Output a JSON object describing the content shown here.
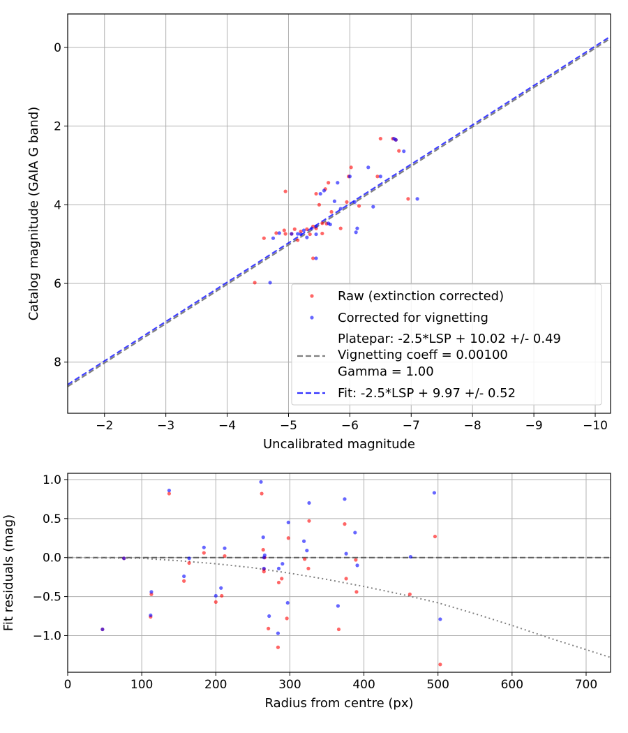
{
  "chart_data": [
    {
      "type": "scatter",
      "xlabel": "Uncalibrated magnitude",
      "ylabel": "Catalog magnitude (GAIA G band)",
      "xlim": [
        -1.4,
        -10.25
      ],
      "ylim": [
        9.3,
        -0.85
      ],
      "x_ticks": [
        -2,
        -3,
        -4,
        -5,
        -6,
        -7,
        -8,
        -9,
        -10
      ],
      "y_ticks": [
        0,
        2,
        4,
        6,
        8
      ],
      "x_tick_labels": [
        "−2",
        "−3",
        "−4",
        "−5",
        "−6",
        "−7",
        "−8",
        "−9",
        "−10"
      ],
      "y_tick_labels": [
        "0",
        "2",
        "4",
        "6",
        "8"
      ],
      "grid": true,
      "legend_placement": "lower-right",
      "colors": {
        "raw": "#ff0000",
        "corrected": "#0000ff",
        "platepar": "#808080",
        "fit": "#0000ff"
      },
      "series": [
        {
          "name": "Raw (extinction corrected)",
          "kind": "points",
          "color": "#ff0000",
          "points": [
            [
              -4.45,
              5.98
            ],
            [
              -4.6,
              4.85
            ],
            [
              -4.8,
              4.72
            ],
            [
              -4.93,
              4.65
            ],
            [
              -4.95,
              4.74
            ],
            [
              -4.95,
              3.66
            ],
            [
              -5.05,
              4.74
            ],
            [
              -5.1,
              4.62
            ],
            [
              -5.15,
              4.9
            ],
            [
              -5.2,
              4.68
            ],
            [
              -5.3,
              4.62
            ],
            [
              -5.35,
              4.75
            ],
            [
              -5.4,
              4.55
            ],
            [
              -5.4,
              5.36
            ],
            [
              -5.45,
              4.6
            ],
            [
              -5.45,
              3.72
            ],
            [
              -5.5,
              4.0
            ],
            [
              -5.55,
              4.73
            ],
            [
              -5.55,
              4.47
            ],
            [
              -5.6,
              3.6
            ],
            [
              -5.62,
              4.48
            ],
            [
              -5.65,
              3.44
            ],
            [
              -5.7,
              4.18
            ],
            [
              -5.85,
              4.6
            ],
            [
              -5.95,
              3.93
            ],
            [
              -5.98,
              3.28
            ],
            [
              -6.02,
              3.05
            ],
            [
              -6.15,
              4.03
            ],
            [
              -6.45,
              3.28
            ],
            [
              -6.5,
              2.32
            ],
            [
              -6.7,
              2.32
            ],
            [
              -6.75,
              2.35
            ],
            [
              -6.8,
              2.63
            ],
            [
              -6.95,
              3.85
            ]
          ]
        },
        {
          "name": "Corrected for vignetting",
          "kind": "points",
          "color": "#0000ff",
          "points": [
            [
              -4.7,
              5.98
            ],
            [
              -4.75,
              4.85
            ],
            [
              -4.85,
              4.72
            ],
            [
              -5.05,
              4.74
            ],
            [
              -5.15,
              4.74
            ],
            [
              -5.2,
              4.75
            ],
            [
              -5.25,
              4.65
            ],
            [
              -5.3,
              4.83
            ],
            [
              -5.38,
              4.6
            ],
            [
              -5.45,
              4.55
            ],
            [
              -5.45,
              4.75
            ],
            [
              -5.45,
              5.36
            ],
            [
              -5.52,
              3.72
            ],
            [
              -5.58,
              3.64
            ],
            [
              -5.65,
              4.47
            ],
            [
              -5.68,
              4.5
            ],
            [
              -5.75,
              3.91
            ],
            [
              -5.8,
              3.44
            ],
            [
              -5.85,
              4.1
            ],
            [
              -6.0,
              3.28
            ],
            [
              -6.08,
              3.93
            ],
            [
              -6.1,
              4.7
            ],
            [
              -6.12,
              4.6
            ],
            [
              -6.3,
              3.05
            ],
            [
              -6.38,
              4.05
            ],
            [
              -6.5,
              3.28
            ],
            [
              -6.72,
              2.32
            ],
            [
              -6.75,
              2.35
            ],
            [
              -6.88,
              2.64
            ],
            [
              -7.1,
              3.85
            ]
          ]
        },
        {
          "name": "Platepar: -2.5*LSP + 10.02 +/- 0.49\nVignetting coeff = 0.00100\nGamma = 1.00",
          "kind": "line",
          "style": "dashed",
          "color": "#808080",
          "points": [
            [
              -1.4,
              8.62
            ],
            [
              -10.25,
              -0.23
            ]
          ]
        },
        {
          "name": "Fit: -2.5*LSP + 9.97 +/- 0.52",
          "kind": "line",
          "style": "dashed",
          "color": "#0000ff",
          "points": [
            [
              -1.4,
              8.57
            ],
            [
              -10.25,
              -0.28
            ]
          ]
        }
      ],
      "legend": [
        {
          "marker": "dot",
          "color": "#ff0000",
          "lines": [
            "Raw (extinction corrected)"
          ]
        },
        {
          "marker": "dot",
          "color": "#0000ff",
          "lines": [
            "Corrected for vignetting"
          ]
        },
        {
          "marker": "dash",
          "color": "#808080",
          "lines": [
            "Platepar: -2.5*LSP + 10.02 +/- 0.49",
            "Vignetting coeff = 0.00100",
            "Gamma = 1.00"
          ]
        },
        {
          "marker": "dash",
          "color": "#0000ff",
          "lines": [
            "Fit: -2.5*LSP + 9.97 +/- 0.52"
          ]
        }
      ]
    },
    {
      "type": "scatter",
      "xlabel": "Radius from centre (px)",
      "ylabel": "Fit residuals (mag)",
      "xlim": [
        0,
        733
      ],
      "ylim": [
        -1.47,
        1.08
      ],
      "x_ticks": [
        0,
        100,
        200,
        300,
        400,
        500,
        600,
        700
      ],
      "y_ticks": [
        1.0,
        0.5,
        0.0,
        -0.5,
        -1.0
      ],
      "x_tick_labels": [
        "0",
        "100",
        "200",
        "300",
        "400",
        "500",
        "600",
        "700"
      ],
      "y_tick_labels": [
        "1.0",
        "0.5",
        "0.0",
        "−0.5",
        "−1.0"
      ],
      "grid": true,
      "colors": {
        "raw": "#ff0000",
        "corrected": "#0000ff",
        "zero_line": "#555555",
        "vignetting_curve": "#808080"
      },
      "series": [
        {
          "kind": "points",
          "color": "#ff0000",
          "points": [
            [
              47,
              -0.92
            ],
            [
              76,
              -0.01
            ],
            [
              112,
              -0.76
            ],
            [
              113,
              -0.47
            ],
            [
              137,
              0.82
            ],
            [
              157,
              -0.3
            ],
            [
              164,
              -0.07
            ],
            [
              184,
              0.06
            ],
            [
              200,
              -0.57
            ],
            [
              208,
              -0.49
            ],
            [
              212,
              0.02
            ],
            [
              262,
              0.82
            ],
            [
              264,
              0.1
            ],
            [
              265,
              -0.15
            ],
            [
              265,
              -0.18
            ],
            [
              266,
              0.0
            ],
            [
              271,
              -0.91
            ],
            [
              284,
              -1.15
            ],
            [
              285,
              -0.32
            ],
            [
              289,
              -0.27
            ],
            [
              296,
              -0.78
            ],
            [
              298,
              0.25
            ],
            [
              320,
              -0.02
            ],
            [
              325,
              -0.14
            ],
            [
              326,
              0.47
            ],
            [
              366,
              -0.92
            ],
            [
              374,
              0.43
            ],
            [
              376,
              -0.27
            ],
            [
              389,
              -0.03
            ],
            [
              390,
              -0.44
            ],
            [
              462,
              -0.47
            ],
            [
              496,
              0.27
            ],
            [
              503,
              -1.37
            ]
          ]
        },
        {
          "kind": "points",
          "color": "#0000ff",
          "points": [
            [
              47,
              -0.92
            ],
            [
              76,
              -0.01
            ],
            [
              112,
              -0.74
            ],
            [
              113,
              -0.44
            ],
            [
              137,
              0.86
            ],
            [
              157,
              -0.24
            ],
            [
              164,
              -0.01
            ],
            [
              184,
              0.13
            ],
            [
              200,
              -0.49
            ],
            [
              207,
              -0.39
            ],
            [
              212,
              0.12
            ],
            [
              261,
              0.97
            ],
            [
              264,
              0.26
            ],
            [
              265,
              -0.14
            ],
            [
              265,
              0.0
            ],
            [
              266,
              0.03
            ],
            [
              272,
              -0.75
            ],
            [
              284,
              -0.97
            ],
            [
              285,
              -0.14
            ],
            [
              290,
              -0.08
            ],
            [
              297,
              -0.58
            ],
            [
              298,
              0.45
            ],
            [
              319,
              0.21
            ],
            [
              323,
              0.09
            ],
            [
              326,
              0.7
            ],
            [
              365,
              -0.62
            ],
            [
              374,
              0.75
            ],
            [
              376,
              0.05
            ],
            [
              388,
              0.32
            ],
            [
              391,
              -0.1
            ],
            [
              463,
              0.01
            ],
            [
              495,
              0.83
            ],
            [
              503,
              -0.79
            ]
          ]
        },
        {
          "kind": "hline",
          "style": "dashed",
          "color": "#555555",
          "value": 0.0
        },
        {
          "kind": "curve",
          "style": "dotted",
          "color": "#808080",
          "points": [
            [
              0,
              0.0
            ],
            [
              100,
              -0.01
            ],
            [
              150,
              -0.04
            ],
            [
              200,
              -0.08
            ],
            [
              250,
              -0.13
            ],
            [
              300,
              -0.2
            ],
            [
              350,
              -0.28
            ],
            [
              400,
              -0.37
            ],
            [
              450,
              -0.47
            ],
            [
              500,
              -0.58
            ],
            [
              550,
              -0.72
            ],
            [
              600,
              -0.87
            ],
            [
              650,
              -1.03
            ],
            [
              700,
              -1.18
            ],
            [
              733,
              -1.28
            ]
          ]
        }
      ]
    }
  ]
}
